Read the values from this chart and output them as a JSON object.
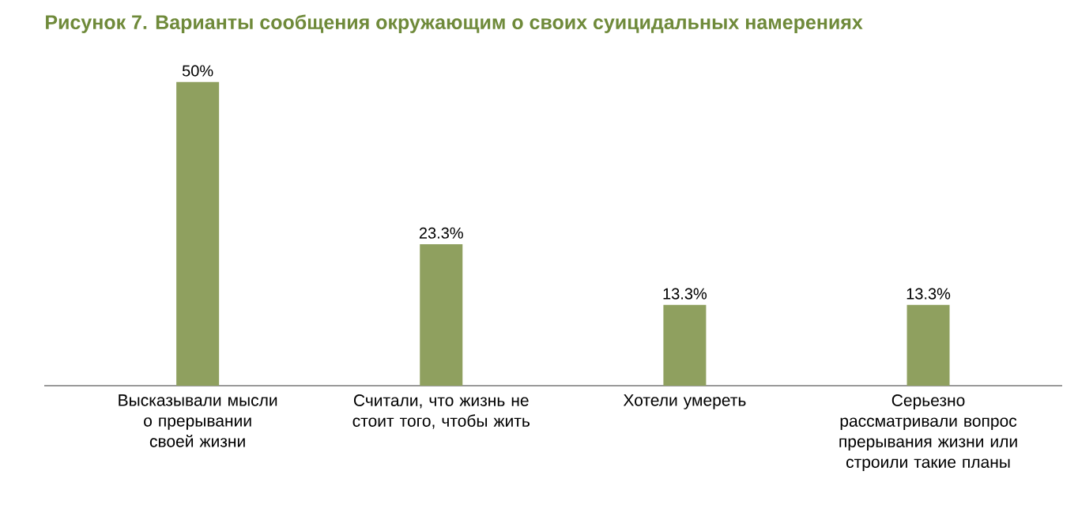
{
  "chart_data": {
    "type": "bar",
    "title": "Рисунок 7. Варианты сообщения окружающим о своих суицидальных намерениях",
    "categories": [
      "Высказывали мысли о прерывании своей жизни",
      "Считали, что жизнь не стоит того, чтобы жить",
      "Хотели умереть",
      "Серьезно рассматривали вопрос прерывания жизни или строили такие планы"
    ],
    "values": [
      50,
      23.3,
      13.3,
      13.3
    ],
    "value_labels": [
      "50%",
      "23.3%",
      "13.3%",
      "13.3%"
    ],
    "color": "#8fa05f"
  }
}
